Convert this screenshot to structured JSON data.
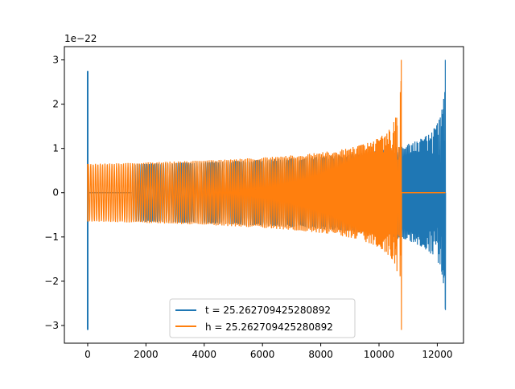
{
  "chart_data": {
    "type": "line",
    "title": "",
    "xlabel": "",
    "ylabel": "",
    "y_offset_label": "1e−22",
    "xlim": [
      -800,
      12900
    ],
    "ylim": [
      -3.4,
      3.3
    ],
    "x_ticks": [
      0,
      2000,
      4000,
      6000,
      8000,
      10000,
      12000
    ],
    "x_tick_labels": [
      "0",
      "2000",
      "4000",
      "6000",
      "8000",
      "10000",
      "12000"
    ],
    "y_ticks": [
      -3,
      -2,
      -1,
      0,
      1,
      2,
      3
    ],
    "y_tick_labels": [
      "−3",
      "−2",
      "−1",
      "0",
      "1",
      "2",
      "3"
    ],
    "grid": false,
    "legend_position": "bottom-center",
    "series": [
      {
        "name": "t = 25.262709425280892",
        "color": "#1f77b4",
        "description_values": {
          "spike_at_x": 0,
          "spike_range": [
            -3.1,
            2.75
          ],
          "flat_from": 0,
          "flat_to": 1500,
          "chirp_from": 1500,
          "chirp_to": 12280,
          "envelope_start": 0.65,
          "envelope_mid_x": 10770,
          "envelope_mid": 1.05,
          "peak_x": 12280,
          "peak_max": 3.0,
          "peak_min": -2.65
        }
      },
      {
        "name": "h = 25.262709425280892",
        "color": "#ff7f0e",
        "description_values": {
          "spike_at_x": 0,
          "spike_range": [
            -0.65,
            0.65
          ],
          "chirp_from": 0,
          "chirp_to": 10770,
          "envelope_start": 0.65,
          "peak_x": 10770,
          "peak_max": 3.0,
          "peak_min": -3.1,
          "flat_from": 10770,
          "flat_to": 12280
        }
      }
    ]
  }
}
